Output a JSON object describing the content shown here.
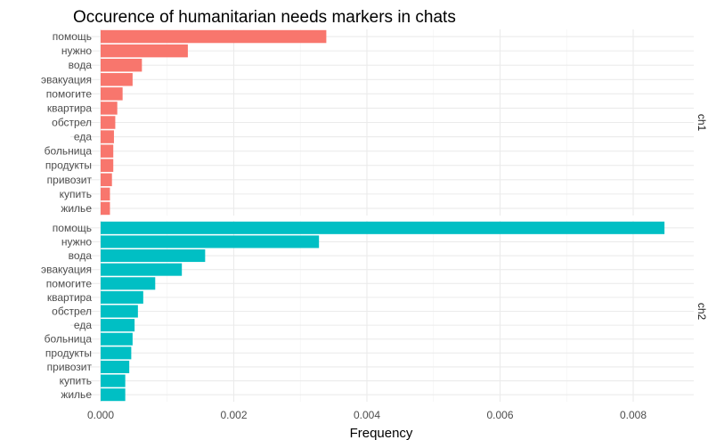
{
  "chart_data": {
    "type": "bar",
    "orientation": "horizontal",
    "title": "Occurence of humanitarian needs markers in chats",
    "xlabel": "Frequency",
    "ylabel": "",
    "xlim": [
      0,
      0.0089
    ],
    "x_ticks": [
      "0.000",
      "0.002",
      "0.004",
      "0.006",
      "0.008"
    ],
    "x_tick_values": [
      0,
      0.002,
      0.004,
      0.006,
      0.008
    ],
    "grid": true,
    "legend": "none",
    "categories": [
      "помощь",
      "нужно",
      "вода",
      "эвакуация",
      "помогите",
      "квартира",
      "обстрел",
      "еда",
      "больница",
      "продукты",
      "привозит",
      "купить",
      "жилье"
    ],
    "facets": [
      {
        "name": "ch1",
        "color": "#F8766D",
        "values": [
          0.00339,
          0.00131,
          0.00062,
          0.00048,
          0.00033,
          0.00025,
          0.00022,
          0.0002,
          0.00019,
          0.00019,
          0.00017,
          0.00014,
          0.00014
        ]
      },
      {
        "name": "ch2",
        "color": "#00BFC4",
        "values": [
          0.00847,
          0.00328,
          0.00157,
          0.00122,
          0.00082,
          0.00064,
          0.00056,
          0.00051,
          0.00048,
          0.00046,
          0.00043,
          0.00037,
          0.00037
        ]
      }
    ]
  }
}
